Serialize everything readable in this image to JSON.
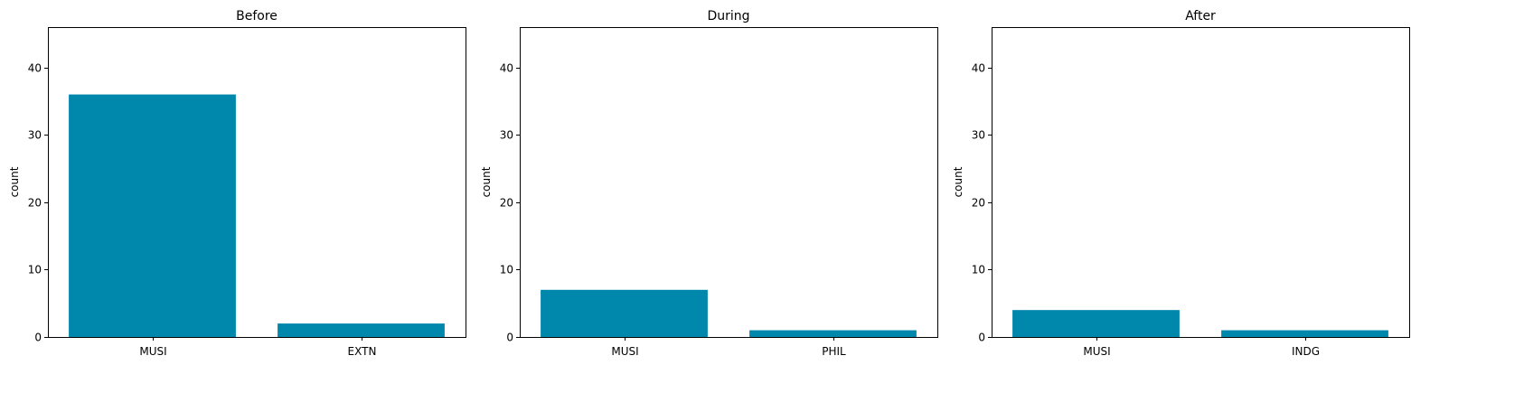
{
  "chart_data": [
    {
      "type": "bar",
      "title": "Before",
      "ylabel": "count",
      "xlabel": "",
      "categories": [
        "MUSI",
        "EXTN"
      ],
      "values": [
        36,
        2
      ],
      "ylim": [
        0,
        46
      ],
      "yticks": [
        0,
        10,
        20,
        30,
        40
      ],
      "grid": false,
      "bar_color": "#0087ac"
    },
    {
      "type": "bar",
      "title": "During",
      "ylabel": "count",
      "xlabel": "",
      "categories": [
        "MUSI",
        "PHIL"
      ],
      "values": [
        7,
        1
      ],
      "ylim": [
        0,
        46
      ],
      "yticks": [
        0,
        10,
        20,
        30,
        40
      ],
      "grid": false,
      "bar_color": "#0087ac"
    },
    {
      "type": "bar",
      "title": "After",
      "ylabel": "count",
      "xlabel": "",
      "categories": [
        "MUSI",
        "INDG"
      ],
      "values": [
        4,
        1
      ],
      "ylim": [
        0,
        46
      ],
      "yticks": [
        0,
        10,
        20,
        30,
        40
      ],
      "grid": false,
      "bar_color": "#0087ac"
    }
  ]
}
